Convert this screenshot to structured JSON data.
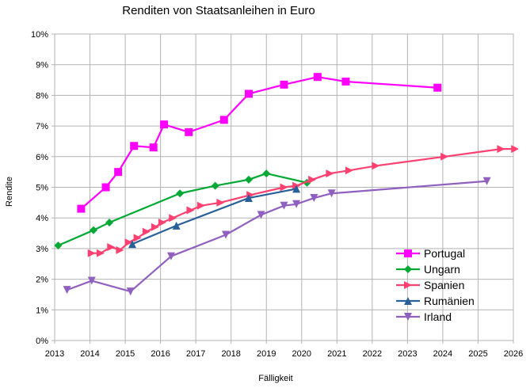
{
  "chart_data": {
    "type": "line",
    "title": "Renditen von Staatsanleihen in Euro",
    "xlabel": "Fälligkeit",
    "ylabel": "Rendite",
    "xlim": [
      2013,
      2026
    ],
    "ylim": [
      0,
      10
    ],
    "x_ticks": [
      "2013",
      "2014",
      "2015",
      "2016",
      "2017",
      "2018",
      "2019",
      "2020",
      "2021",
      "2022",
      "2023",
      "2024",
      "2025",
      "2026"
    ],
    "y_ticks": [
      "0%",
      "1%",
      "2%",
      "3%",
      "4%",
      "5%",
      "6%",
      "7%",
      "8%",
      "9%",
      "10%"
    ],
    "grid": true,
    "legend_position": "bottom-right",
    "series": [
      {
        "name": "Portugal",
        "color": "#ff00ff",
        "marker": "square",
        "x": [
          2013.75,
          2014.45,
          2014.8,
          2015.25,
          2015.8,
          2016.1,
          2016.8,
          2017.8,
          2018.5,
          2019.5,
          2020.45,
          2021.25,
          2023.85
        ],
        "y": [
          4.3,
          5.0,
          5.5,
          6.35,
          6.3,
          7.05,
          6.8,
          7.2,
          8.05,
          8.35,
          8.6,
          8.45,
          8.25
        ]
      },
      {
        "name": "Ungarn",
        "color": "#00a933",
        "marker": "diamond",
        "x": [
          2013.1,
          2014.1,
          2014.55,
          2016.55,
          2017.55,
          2018.5,
          2019.0,
          2020.15
        ],
        "y": [
          3.1,
          3.6,
          3.85,
          4.8,
          5.05,
          5.25,
          5.45,
          5.15
        ]
      },
      {
        "name": "Spanien",
        "color": "#ff4070",
        "marker": "triangle-right",
        "x": [
          2014.05,
          2014.3,
          2014.6,
          2014.85,
          2015.1,
          2015.35,
          2015.6,
          2015.85,
          2016.05,
          2016.35,
          2016.85,
          2017.15,
          2017.7,
          2018.55,
          2019.5,
          2019.85,
          2020.3,
          2020.8,
          2021.35,
          2022.1,
          2024.05,
          2025.65,
          2026.05
        ],
        "y": [
          2.85,
          2.85,
          3.05,
          2.95,
          3.2,
          3.35,
          3.55,
          3.7,
          3.85,
          4.0,
          4.25,
          4.4,
          4.5,
          4.75,
          5.0,
          5.05,
          5.25,
          5.45,
          5.55,
          5.7,
          6.0,
          6.25,
          6.25
        ]
      },
      {
        "name": "Rumänien",
        "color": "#2a6099",
        "marker": "triangle-up",
        "x": [
          2015.2,
          2016.45,
          2018.5,
          2019.85
        ],
        "y": [
          3.15,
          3.75,
          4.65,
          4.95
        ]
      },
      {
        "name": "Irland",
        "color": "#9060c0",
        "marker": "triangle-down",
        "x": [
          2013.35,
          2014.05,
          2015.15,
          2016.3,
          2017.85,
          2018.85,
          2019.5,
          2019.85,
          2020.35,
          2020.85,
          2025.25
        ],
        "y": [
          1.65,
          1.95,
          1.6,
          2.75,
          3.45,
          4.1,
          4.4,
          4.45,
          4.65,
          4.8,
          5.2
        ]
      }
    ]
  }
}
